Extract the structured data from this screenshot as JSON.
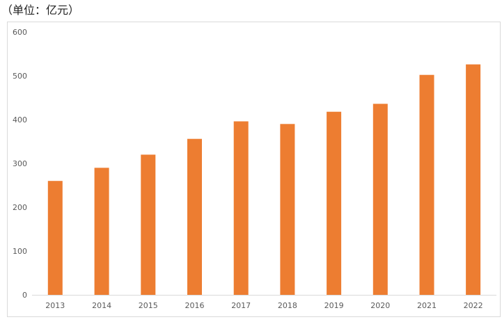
{
  "unit_label": "（单位：亿元）",
  "colors": {
    "bar": "#ED7D31",
    "axis": "#d9d9d9",
    "tick_text": "#595959"
  },
  "chart_data": {
    "type": "bar",
    "categories": [
      "2013",
      "2014",
      "2015",
      "2016",
      "2017",
      "2018",
      "2019",
      "2020",
      "2021",
      "2022"
    ],
    "series": [
      {
        "values": [
          260,
          290,
          320,
          356,
          396,
          390,
          418,
          436,
          502,
          526
        ]
      }
    ],
    "ylim": [
      0,
      600
    ],
    "yticks": [
      0,
      100,
      200,
      300,
      400,
      500,
      600
    ],
    "grid": false,
    "legend": "none"
  }
}
